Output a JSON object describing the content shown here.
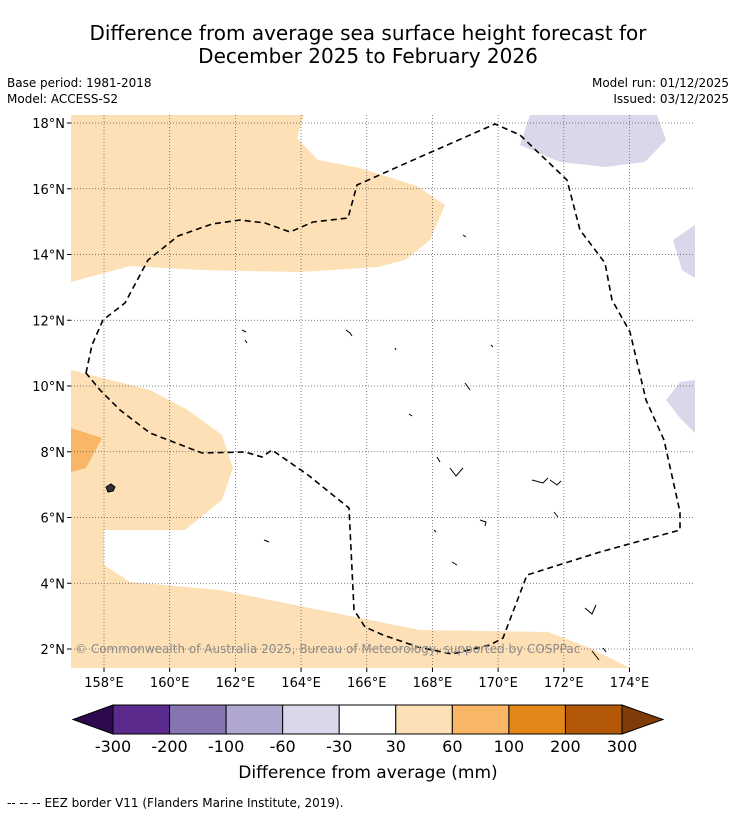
{
  "title": {
    "line1": "Difference from average sea surface height forecast for",
    "line2": "December 2025 to February 2026"
  },
  "meta": {
    "base_period": "Base period: 1981-2018",
    "model": "Model: ACCESS-S2",
    "model_run": "Model run: 01/12/2025",
    "issued": "Issued: 03/12/2025"
  },
  "map": {
    "lat_labels": [
      "18°N",
      "16°N",
      "14°N",
      "12°N",
      "10°N",
      "8°N",
      "6°N",
      "4°N",
      "2°N"
    ],
    "lat_values": [
      18,
      16,
      14,
      12,
      10,
      8,
      6,
      4,
      2
    ],
    "lon_labels": [
      "158°E",
      "160°E",
      "162°E",
      "164°E",
      "166°E",
      "168°E",
      "170°E",
      "172°E",
      "174°E"
    ],
    "lon_values": [
      158,
      160,
      162,
      164,
      166,
      168,
      170,
      172,
      174
    ],
    "copyright": "© Commonwealth of Australia 2025, Bureau of Meteorology, supported by COSPPac",
    "colors": {
      "pale_orange": "#fde0b6",
      "light_orange": "#f9b666",
      "pale_purple": "#d8d8ea",
      "gridline": "#555555",
      "eez": "#000000"
    }
  },
  "colorbar": {
    "ticks": [
      "-300",
      "-200",
      "-100",
      "-60",
      "-30",
      "30",
      "60",
      "100",
      "200",
      "300"
    ],
    "colors": [
      "#5b2a8d",
      "#8674b0",
      "#b0a7d0",
      "#d8d8ea",
      "#ffffff",
      "#fde0b6",
      "#f9b666",
      "#e28619",
      "#b35806"
    ],
    "under_color": "#2d0a4e",
    "over_color": "#7f3b08",
    "label": "Difference from average (mm)"
  },
  "footer": {
    "legend_symbol": "--  --  --",
    "legend_text": "EEZ border V11 (Flanders Marine Institute, 2019)."
  }
}
